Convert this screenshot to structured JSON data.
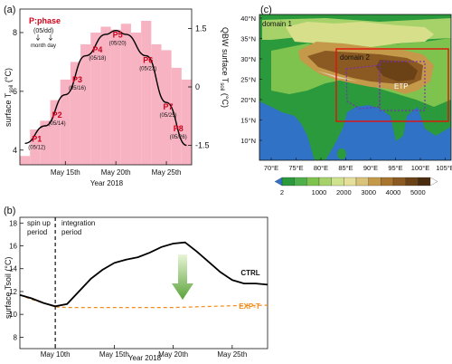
{
  "panel_a": {
    "label": "(a)",
    "ylabel_left": "surface T",
    "ylabel_left_sub": "soil",
    "ylabel_left_unit": " (°C)",
    "ylabel_right": "QBW surface T",
    "ylabel_right_sub": "soil",
    "ylabel_right_unit": " (°C)",
    "xlabel": "Year 2018",
    "legend_title": "P:phase",
    "legend_sub": "(05/dd)",
    "legend_month": "month day",
    "left_ticks": [
      "4",
      "6",
      "8"
    ],
    "right_ticks": [
      "1.5",
      "0",
      "-1.5"
    ],
    "x_ticks": [
      "May 15th",
      "May 20th",
      "May 25th"
    ],
    "phases": [
      {
        "name": "P1",
        "date": "(05/12)"
      },
      {
        "name": "P2",
        "date": "(05/14)"
      },
      {
        "name": "P3",
        "date": "(05/16)"
      },
      {
        "name": "P4",
        "date": "(05/18)"
      },
      {
        "name": "P5",
        "date": "(05/20)"
      },
      {
        "name": "P6",
        "date": "(05/23)"
      },
      {
        "name": "P7",
        "date": "(05/25)"
      },
      {
        "name": "P8",
        "date": "(05/26)"
      }
    ]
  },
  "panel_b": {
    "label": "(b)",
    "ylabel": "surface Tsoil (°C)",
    "xlabel": "Year 2018",
    "spinup_label": "spin up",
    "spinup_label2": "period",
    "integration_label": "integration",
    "integration_label2": "period",
    "y_ticks": [
      "8",
      "10",
      "12",
      "14",
      "16",
      "18"
    ],
    "x_ticks": [
      "May 10th",
      "May 15th",
      "May 20th",
      "May 25th"
    ],
    "ctrl_label": "CTRL",
    "exp_label": "EXP-T"
  },
  "panel_c": {
    "label": "(c)",
    "domain1_label": "domain 1",
    "domain2_label": "domain 2",
    "etp_label": "ETP",
    "lat_ticks": [
      "40°N",
      "35°N",
      "30°N",
      "25°N",
      "20°N",
      "15°N",
      "10°N"
    ],
    "lon_ticks": [
      "70°E",
      "75°E",
      "80°E",
      "85°E",
      "90°E",
      "95°E",
      "100°E",
      "105°E"
    ],
    "colorbar_ticks": [
      "2",
      "1000",
      "2000",
      "3000",
      "4000",
      "5000"
    ],
    "colors": {
      "sea": "#2f72c6",
      "land_low": "#2a9a3c",
      "land_mid": "#a7d26a",
      "high": "#b17a35",
      "peak": "#5c3812"
    }
  },
  "chart_data": [
    {
      "type": "bar",
      "title": "",
      "xlabel": "Year 2018",
      "ylabel": "surface Tsoil (°C)",
      "y2label": "QBW surface Tsoil (°C)",
      "categories": [
        "05/11",
        "05/12",
        "05/13",
        "05/14",
        "05/15",
        "05/16",
        "05/17",
        "05/18",
        "05/19",
        "05/20",
        "05/21",
        "05/22",
        "05/23",
        "05/24",
        "05/25",
        "05/26",
        "05/27"
      ],
      "values": [
        3.8,
        4.7,
        5.0,
        5.7,
        6.4,
        7.0,
        7.6,
        8.0,
        8.2,
        8.1,
        8.3,
        8.0,
        8.4,
        7.6,
        7.4,
        6.8,
        6.4
      ],
      "ylim": [
        3.5,
        8.8
      ],
      "series": [
        {
          "name": "QBW surface Tsoil",
          "x": [
            "05/11",
            "05/13",
            "05/15",
            "05/17",
            "05/19",
            "05/20",
            "05/21",
            "05/23",
            "05/25",
            "05/27"
          ],
          "values": [
            -1.45,
            -1.0,
            -0.2,
            0.8,
            1.35,
            1.45,
            1.35,
            0.8,
            -0.4,
            -1.5
          ]
        }
      ]
    },
    {
      "type": "line",
      "title": "",
      "xlabel": "Year 2018",
      "ylabel": "surface Tsoil (°C)",
      "ylim": [
        7,
        18.5
      ],
      "series": [
        {
          "name": "CTRL",
          "x": [
            "05/07",
            "05/08",
            "05/09",
            "05/10",
            "05/11",
            "05/12",
            "05/13",
            "05/14",
            "05/15",
            "05/16",
            "05/17",
            "05/18",
            "05/19",
            "05/20",
            "05/21",
            "05/22",
            "05/23",
            "05/24",
            "05/25",
            "05/26",
            "05/27",
            "05/28"
          ],
          "values": [
            11.7,
            11.4,
            11.0,
            10.7,
            10.9,
            12.0,
            13.1,
            13.9,
            14.5,
            14.8,
            15.0,
            15.4,
            15.9,
            16.2,
            16.3,
            15.5,
            14.6,
            13.7,
            13.0,
            12.7,
            12.7,
            12.6
          ]
        },
        {
          "name": "EXP-T",
          "x": [
            "05/07",
            "05/08",
            "05/09",
            "05/10",
            "05/11",
            "05/15",
            "05/20",
            "05/25",
            "05/28"
          ],
          "values": [
            11.7,
            11.3,
            11.0,
            10.65,
            10.6,
            10.6,
            10.6,
            10.75,
            10.8
          ]
        }
      ]
    }
  ]
}
